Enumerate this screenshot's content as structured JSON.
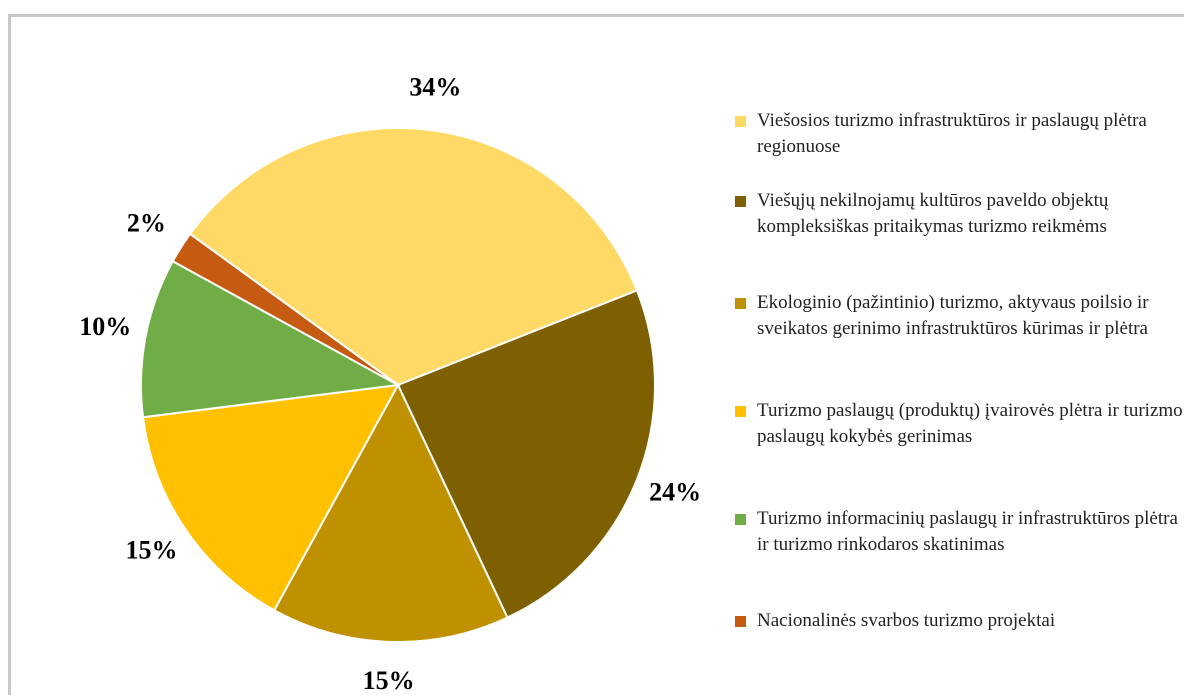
{
  "chart_data": {
    "type": "pie",
    "categories": [
      "Viešosios turizmo infrastruktūros ir paslaugų plėtra regionuose",
      "Viešųjų nekilnojamų kultūros paveldo objektų kompleksiškas pritaikymas turizmo reikmėms",
      "Ekologinio (pažintinio) turizmo, aktyvaus poilsio ir sveikatos gerinimo infrastruktūros kūrimas ir plėtra",
      "Turizmo paslaugų (produktų) įvairovės plėtra ir turizmo paslaugų kokybės gerinimas",
      "Turizmo informacinių paslaugų ir infrastruktūros plėtra ir turizmo rinkodaros skatinimas",
      "Nacionalinės svarbos turizmo projektai"
    ],
    "values": [
      34,
      24,
      15,
      15,
      10,
      2
    ],
    "value_labels": [
      "34%",
      "24%",
      "15%",
      "15%",
      "10%",
      "2%"
    ],
    "colors": [
      "#FFD966",
      "#7F6000",
      "#BF9000",
      "#FFC000",
      "#70AD47",
      "#C55A11"
    ],
    "legend": "right"
  }
}
